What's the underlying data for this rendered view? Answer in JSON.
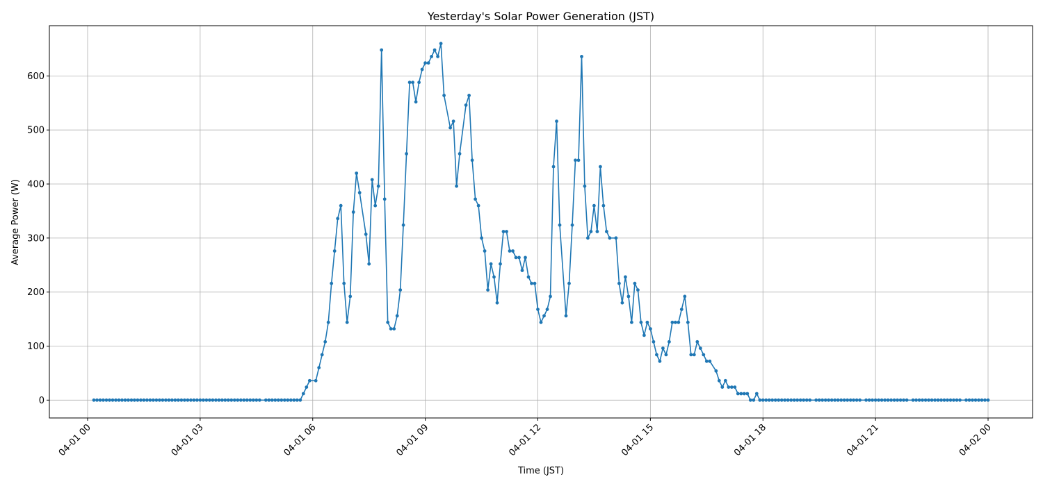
{
  "chart_data": {
    "type": "line",
    "title": "Yesterday's Solar Power Generation (JST)",
    "xlabel": "Time (JST)",
    "ylabel": "Average Power (W)",
    "xlim": [
      "03-31 22:59",
      "04-02 01:12"
    ],
    "ylim": [
      -33,
      693
    ],
    "grid": true,
    "color": "#1f77b4",
    "marker": "circle",
    "x_ticks": [
      "04-01 00",
      "04-01 03",
      "04-01 06",
      "04-01 09",
      "04-01 12",
      "04-01 15",
      "04-01 18",
      "04-01 21",
      "04-02 00"
    ],
    "y_ticks": [
      "0",
      "100",
      "200",
      "300",
      "400",
      "500",
      "600"
    ],
    "points": [
      [
        "04-01 00:10",
        0
      ],
      [
        "04-01 00:15",
        0
      ],
      [
        "04-01 00:20",
        0
      ],
      [
        "04-01 00:25",
        0
      ],
      [
        "04-01 00:30",
        0
      ],
      [
        "04-01 00:35",
        0
      ],
      [
        "04-01 00:40",
        0
      ],
      [
        "04-01 00:45",
        0
      ],
      [
        "04-01 00:50",
        0
      ],
      [
        "04-01 00:55",
        0
      ],
      [
        "04-01 01:00",
        0
      ],
      [
        "04-01 01:05",
        0
      ],
      [
        "04-01 01:10",
        0
      ],
      [
        "04-01 01:15",
        0
      ],
      [
        "04-01 01:20",
        0
      ],
      [
        "04-01 01:25",
        0
      ],
      [
        "04-01 01:30",
        0
      ],
      [
        "04-01 01:35",
        0
      ],
      [
        "04-01 01:40",
        0
      ],
      [
        "04-01 01:45",
        0
      ],
      [
        "04-01 01:50",
        0
      ],
      [
        "04-01 01:55",
        0
      ],
      [
        "04-01 02:00",
        0
      ],
      [
        "04-01 02:05",
        0
      ],
      [
        "04-01 02:10",
        0
      ],
      [
        "04-01 02:15",
        0
      ],
      [
        "04-01 02:20",
        0
      ],
      [
        "04-01 02:25",
        0
      ],
      [
        "04-01 02:30",
        0
      ],
      [
        "04-01 02:35",
        0
      ],
      [
        "04-01 02:40",
        0
      ],
      [
        "04-01 02:45",
        0
      ],
      [
        "04-01 02:50",
        0
      ],
      [
        "04-01 02:55",
        0
      ],
      [
        "04-01 03:00",
        0
      ],
      [
        "04-01 03:05",
        0
      ],
      [
        "04-01 03:10",
        0
      ],
      [
        "04-01 03:15",
        0
      ],
      [
        "04-01 03:20",
        0
      ],
      [
        "04-01 03:25",
        0
      ],
      [
        "04-01 03:30",
        0
      ],
      [
        "04-01 03:35",
        0
      ],
      [
        "04-01 03:40",
        0
      ],
      [
        "04-01 03:45",
        0
      ],
      [
        "04-01 03:50",
        0
      ],
      [
        "04-01 03:55",
        0
      ],
      [
        "04-01 04:00",
        0
      ],
      [
        "04-01 04:05",
        0
      ],
      [
        "04-01 04:10",
        0
      ],
      [
        "04-01 04:15",
        0
      ],
      [
        "04-01 04:20",
        0
      ],
      [
        "04-01 04:25",
        0
      ],
      [
        "04-01 04:30",
        0
      ],
      [
        "04-01 04:35",
        0
      ],
      [
        "04-01 04:45",
        0
      ],
      [
        "04-01 04:50",
        0
      ],
      [
        "04-01 04:55",
        0
      ],
      [
        "04-01 05:00",
        0
      ],
      [
        "04-01 05:05",
        0
      ],
      [
        "04-01 05:10",
        0
      ],
      [
        "04-01 05:15",
        0
      ],
      [
        "04-01 05:20",
        0
      ],
      [
        "04-01 05:25",
        0
      ],
      [
        "04-01 05:30",
        0
      ],
      [
        "04-01 05:35",
        0
      ],
      [
        "04-01 05:40",
        0
      ],
      [
        "04-01 05:45",
        12
      ],
      [
        "04-01 05:50",
        24
      ],
      [
        "04-01 05:55",
        36
      ],
      [
        "04-01 06:05",
        36
      ],
      [
        "04-01 06:10",
        60
      ],
      [
        "04-01 06:15",
        84
      ],
      [
        "04-01 06:20",
        108
      ],
      [
        "04-01 06:25",
        144
      ],
      [
        "04-01 06:30",
        216
      ],
      [
        "04-01 06:35",
        276
      ],
      [
        "04-01 06:40",
        336
      ],
      [
        "04-01 06:45",
        360
      ],
      [
        "04-01 06:50",
        216
      ],
      [
        "04-01 06:55",
        144
      ],
      [
        "04-01 07:00",
        192
      ],
      [
        "04-01 07:05",
        348
      ],
      [
        "04-01 07:10",
        420
      ],
      [
        "04-01 07:15",
        384
      ],
      [
        "04-01 07:25",
        307
      ],
      [
        "04-01 07:30",
        252
      ],
      [
        "04-01 07:35",
        408
      ],
      [
        "04-01 07:40",
        360
      ],
      [
        "04-01 07:45",
        396
      ],
      [
        "04-01 07:50",
        648
      ],
      [
        "04-01 07:55",
        372
      ],
      [
        "04-01 08:00",
        144
      ],
      [
        "04-01 08:05",
        132
      ],
      [
        "04-01 08:10",
        132
      ],
      [
        "04-01 08:15",
        156
      ],
      [
        "04-01 08:20",
        204
      ],
      [
        "04-01 08:25",
        324
      ],
      [
        "04-01 08:30",
        456
      ],
      [
        "04-01 08:35",
        588
      ],
      [
        "04-01 08:40",
        588
      ],
      [
        "04-01 08:45",
        552
      ],
      [
        "04-01 08:50",
        588
      ],
      [
        "04-01 08:55",
        612
      ],
      [
        "04-01 09:00",
        624
      ],
      [
        "04-01 09:05",
        624
      ],
      [
        "04-01 09:10",
        636
      ],
      [
        "04-01 09:15",
        648
      ],
      [
        "04-01 09:20",
        636
      ],
      [
        "04-01 09:25",
        660
      ],
      [
        "04-01 09:30",
        564
      ],
      [
        "04-01 09:40",
        504
      ],
      [
        "04-01 09:45",
        516
      ],
      [
        "04-01 09:50",
        396
      ],
      [
        "04-01 09:55",
        456
      ],
      [
        "04-01 10:05",
        546
      ],
      [
        "04-01 10:10",
        564
      ],
      [
        "04-01 10:15",
        444
      ],
      [
        "04-01 10:20",
        372
      ],
      [
        "04-01 10:25",
        360
      ],
      [
        "04-01 10:30",
        300
      ],
      [
        "04-01 10:35",
        276
      ],
      [
        "04-01 10:40",
        204
      ],
      [
        "04-01 10:45",
        252
      ],
      [
        "04-01 10:50",
        228
      ],
      [
        "04-01 10:55",
        180
      ],
      [
        "04-01 11:00",
        252
      ],
      [
        "04-01 11:05",
        312
      ],
      [
        "04-01 11:10",
        312
      ],
      [
        "04-01 11:15",
        276
      ],
      [
        "04-01 11:20",
        276
      ],
      [
        "04-01 11:25",
        264
      ],
      [
        "04-01 11:30",
        264
      ],
      [
        "04-01 11:35",
        240
      ],
      [
        "04-01 11:40",
        264
      ],
      [
        "04-01 11:45",
        228
      ],
      [
        "04-01 11:50",
        216
      ],
      [
        "04-01 11:55",
        216
      ],
      [
        "04-01 12:00",
        168
      ],
      [
        "04-01 12:05",
        144
      ],
      [
        "04-01 12:10",
        156
      ],
      [
        "04-01 12:15",
        168
      ],
      [
        "04-01 12:20",
        192
      ],
      [
        "04-01 12:25",
        432
      ],
      [
        "04-01 12:30",
        516
      ],
      [
        "04-01 12:35",
        324
      ],
      [
        "04-01 12:45",
        156
      ],
      [
        "04-01 12:50",
        216
      ],
      [
        "04-01 12:55",
        324
      ],
      [
        "04-01 13:00",
        444
      ],
      [
        "04-01 13:05",
        444
      ],
      [
        "04-01 13:10",
        636
      ],
      [
        "04-01 13:15",
        396
      ],
      [
        "04-01 13:20",
        300
      ],
      [
        "04-01 13:25",
        312
      ],
      [
        "04-01 13:30",
        360
      ],
      [
        "04-01 13:35",
        312
      ],
      [
        "04-01 13:40",
        432
      ],
      [
        "04-01 13:45",
        360
      ],
      [
        "04-01 13:50",
        312
      ],
      [
        "04-01 13:55",
        300
      ],
      [
        "04-01 14:05",
        300
      ],
      [
        "04-01 14:10",
        216
      ],
      [
        "04-01 14:15",
        180
      ],
      [
        "04-01 14:20",
        228
      ],
      [
        "04-01 14:25",
        192
      ],
      [
        "04-01 14:30",
        144
      ],
      [
        "04-01 14:35",
        216
      ],
      [
        "04-01 14:40",
        204
      ],
      [
        "04-01 14:45",
        144
      ],
      [
        "04-01 14:50",
        120
      ],
      [
        "04-01 14:55",
        144
      ],
      [
        "04-01 15:00",
        132
      ],
      [
        "04-01 15:05",
        108
      ],
      [
        "04-01 15:10",
        84
      ],
      [
        "04-01 15:15",
        72
      ],
      [
        "04-01 15:20",
        96
      ],
      [
        "04-01 15:25",
        84
      ],
      [
        "04-01 15:30",
        108
      ],
      [
        "04-01 15:35",
        144
      ],
      [
        "04-01 15:40",
        144
      ],
      [
        "04-01 15:45",
        144
      ],
      [
        "04-01 15:50",
        168
      ],
      [
        "04-01 15:55",
        192
      ],
      [
        "04-01 16:00",
        144
      ],
      [
        "04-01 16:05",
        84
      ],
      [
        "04-01 16:10",
        84
      ],
      [
        "04-01 16:15",
        108
      ],
      [
        "04-01 16:20",
        96
      ],
      [
        "04-01 16:25",
        84
      ],
      [
        "04-01 16:30",
        72
      ],
      [
        "04-01 16:35",
        72
      ],
      [
        "04-01 16:45",
        54
      ],
      [
        "04-01 16:50",
        36
      ],
      [
        "04-01 16:55",
        24
      ],
      [
        "04-01 17:00",
        36
      ],
      [
        "04-01 17:05",
        24
      ],
      [
        "04-01 17:10",
        24
      ],
      [
        "04-01 17:15",
        24
      ],
      [
        "04-01 17:20",
        12
      ],
      [
        "04-01 17:25",
        12
      ],
      [
        "04-01 17:30",
        12
      ],
      [
        "04-01 17:35",
        12
      ],
      [
        "04-01 17:40",
        0
      ],
      [
        "04-01 17:45",
        0
      ],
      [
        "04-01 17:50",
        12
      ],
      [
        "04-01 17:55",
        0
      ],
      [
        "04-01 18:00",
        0
      ],
      [
        "04-01 18:05",
        0
      ],
      [
        "04-01 18:10",
        0
      ],
      [
        "04-01 18:15",
        0
      ],
      [
        "04-01 18:20",
        0
      ],
      [
        "04-01 18:25",
        0
      ],
      [
        "04-01 18:30",
        0
      ],
      [
        "04-01 18:35",
        0
      ],
      [
        "04-01 18:40",
        0
      ],
      [
        "04-01 18:45",
        0
      ],
      [
        "04-01 18:50",
        0
      ],
      [
        "04-01 18:55",
        0
      ],
      [
        "04-01 19:00",
        0
      ],
      [
        "04-01 19:05",
        0
      ],
      [
        "04-01 19:10",
        0
      ],
      [
        "04-01 19:15",
        0
      ],
      [
        "04-01 19:25",
        0
      ],
      [
        "04-01 19:30",
        0
      ],
      [
        "04-01 19:35",
        0
      ],
      [
        "04-01 19:40",
        0
      ],
      [
        "04-01 19:45",
        0
      ],
      [
        "04-01 19:50",
        0
      ],
      [
        "04-01 19:55",
        0
      ],
      [
        "04-01 20:00",
        0
      ],
      [
        "04-01 20:05",
        0
      ],
      [
        "04-01 20:10",
        0
      ],
      [
        "04-01 20:15",
        0
      ],
      [
        "04-01 20:20",
        0
      ],
      [
        "04-01 20:25",
        0
      ],
      [
        "04-01 20:30",
        0
      ],
      [
        "04-01 20:35",
        0
      ],
      [
        "04-01 20:45",
        0
      ],
      [
        "04-01 20:50",
        0
      ],
      [
        "04-01 20:55",
        0
      ],
      [
        "04-01 21:00",
        0
      ],
      [
        "04-01 21:05",
        0
      ],
      [
        "04-01 21:10",
        0
      ],
      [
        "04-01 21:15",
        0
      ],
      [
        "04-01 21:20",
        0
      ],
      [
        "04-01 21:25",
        0
      ],
      [
        "04-01 21:30",
        0
      ],
      [
        "04-01 21:35",
        0
      ],
      [
        "04-01 21:40",
        0
      ],
      [
        "04-01 21:45",
        0
      ],
      [
        "04-01 21:50",
        0
      ],
      [
        "04-01 22:00",
        0
      ],
      [
        "04-01 22:05",
        0
      ],
      [
        "04-01 22:10",
        0
      ],
      [
        "04-01 22:15",
        0
      ],
      [
        "04-01 22:20",
        0
      ],
      [
        "04-01 22:25",
        0
      ],
      [
        "04-01 22:30",
        0
      ],
      [
        "04-01 22:35",
        0
      ],
      [
        "04-01 22:40",
        0
      ],
      [
        "04-01 22:45",
        0
      ],
      [
        "04-01 22:50",
        0
      ],
      [
        "04-01 22:55",
        0
      ],
      [
        "04-01 23:00",
        0
      ],
      [
        "04-01 23:05",
        0
      ],
      [
        "04-01 23:10",
        0
      ],
      [
        "04-01 23:15",
        0
      ],
      [
        "04-01 23:25",
        0
      ],
      [
        "04-01 23:30",
        0
      ],
      [
        "04-01 23:35",
        0
      ],
      [
        "04-01 23:40",
        0
      ],
      [
        "04-01 23:45",
        0
      ],
      [
        "04-01 23:50",
        0
      ],
      [
        "04-01 23:55",
        0
      ],
      [
        "04-02 00:00",
        0
      ]
    ]
  }
}
